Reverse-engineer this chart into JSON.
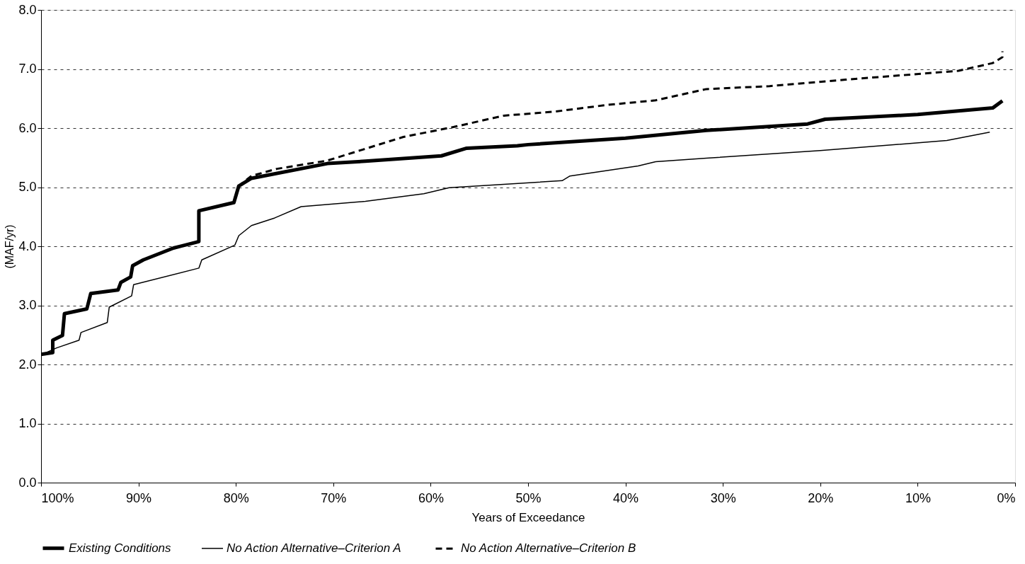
{
  "chart_data": {
    "type": "line",
    "xlabel": "Years of Exceedance",
    "ylabel": "(MAF/yr)",
    "xlim": [
      100,
      0
    ],
    "ylim": [
      0,
      8
    ],
    "xticks": [
      {
        "value": 100,
        "label": "100%"
      },
      {
        "value": 90,
        "label": "90%"
      },
      {
        "value": 80,
        "label": "80%"
      },
      {
        "value": 70,
        "label": "70%"
      },
      {
        "value": 60,
        "label": "60%"
      },
      {
        "value": 50,
        "label": "50%"
      },
      {
        "value": 40,
        "label": "40%"
      },
      {
        "value": 30,
        "label": "30%"
      },
      {
        "value": 20,
        "label": "20%"
      },
      {
        "value": 10,
        "label": "10%"
      },
      {
        "value": 0,
        "label": "0%"
      }
    ],
    "yticks": [
      {
        "value": 0,
        "label": "0.0"
      },
      {
        "value": 1,
        "label": "1.0"
      },
      {
        "value": 2,
        "label": "2.0"
      },
      {
        "value": 3,
        "label": "3.0"
      },
      {
        "value": 4,
        "label": "4.0"
      },
      {
        "value": 5,
        "label": "5.0"
      },
      {
        "value": 6,
        "label": "6.0"
      },
      {
        "value": 7,
        "label": "7.0"
      },
      {
        "value": 8,
        "label": "8.0"
      }
    ],
    "grid": "y",
    "legend": "bottom",
    "series": [
      {
        "name": "Existing Conditions",
        "color": "#000000",
        "line_style": "solid",
        "x": [
          100,
          98.8,
          98.8,
          97.8,
          97.6,
          95.3,
          94.9,
          92.1,
          91.8,
          90.8,
          90.6,
          89.5,
          86.4,
          83.8,
          83.8,
          80.2,
          79.7,
          78.4,
          70.6,
          66.7,
          58.9,
          56.3,
          51.1,
          50,
          40,
          31.7,
          21.3,
          19.5,
          10,
          2.3,
          1.3
        ],
        "values": [
          2.17,
          2.2,
          2.41,
          2.49,
          2.86,
          2.94,
          3.2,
          3.26,
          3.39,
          3.48,
          3.67,
          3.77,
          3.97,
          4.08,
          4.6,
          4.74,
          5.02,
          5.15,
          5.4,
          5.44,
          5.53,
          5.66,
          5.7,
          5.72,
          5.83,
          5.96,
          6.07,
          6.15,
          6.23,
          6.34,
          6.46
        ]
      },
      {
        "name": "No Action Alternative–Criterion A",
        "color": "#000000",
        "line_style": "solid",
        "x": [
          100,
          98.4,
          96.1,
          95.9,
          93.2,
          93,
          90.7,
          90.5,
          83.8,
          83.5,
          80.1,
          79.7,
          78.4,
          76,
          73.3,
          66.7,
          60.7,
          58.1,
          46.5,
          45.7,
          38.7,
          36.9,
          31.7,
          20,
          7,
          2.6
        ],
        "values": [
          2.16,
          2.28,
          2.41,
          2.54,
          2.71,
          2.97,
          3.16,
          3.35,
          3.63,
          3.77,
          4.02,
          4.18,
          4.35,
          4.48,
          4.67,
          4.76,
          4.89,
          4.99,
          5.11,
          5.19,
          5.36,
          5.43,
          5.49,
          5.62,
          5.79,
          5.93
        ]
      },
      {
        "name": "No Action Alternative–Criterion B",
        "color": "#000000",
        "line_style": "dashed",
        "x": [
          100,
          98.8,
          98.8,
          97.8,
          97.6,
          95.3,
          94.9,
          92.1,
          91.8,
          90.8,
          90.6,
          89.5,
          86.4,
          83.8,
          83.8,
          80.2,
          79.7,
          78.4,
          75.8,
          70.6,
          66.9,
          62.8,
          57.6,
          52.5,
          47.2,
          42,
          36.9,
          31.7,
          25.2,
          17.4,
          9.6,
          5.8,
          2.3,
          1.3,
          1.3
        ],
        "values": [
          2.17,
          2.2,
          2.41,
          2.49,
          2.86,
          2.94,
          3.2,
          3.26,
          3.39,
          3.48,
          3.67,
          3.77,
          3.97,
          4.08,
          4.6,
          4.74,
          5.02,
          5.19,
          5.31,
          5.45,
          5.64,
          5.85,
          6.02,
          6.21,
          6.28,
          6.39,
          6.47,
          6.66,
          6.71,
          6.82,
          6.92,
          6.97,
          7.1,
          7.2,
          7.3
        ]
      }
    ]
  }
}
